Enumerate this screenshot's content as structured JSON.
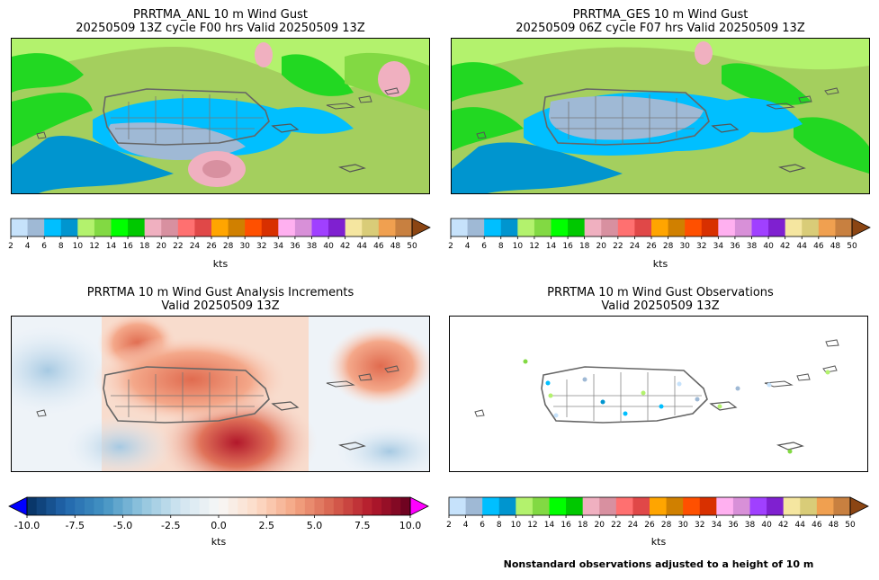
{
  "panels": {
    "anl": {
      "title1": "PRRTMA_ANL 10 m Wind Gust",
      "title2": "20250509 13Z cycle F00 hrs Valid 20250509 13Z"
    },
    "ges": {
      "title1": "PRRTMA_GES 10 m Wind Gust",
      "title2": "20250509 06Z cycle F07 hrs Valid 20250509 13Z"
    },
    "inc": {
      "title1": "PRRTMA 10 m Wind Gust Analysis Increments",
      "title2": "Valid 20250509 13Z"
    },
    "obs": {
      "title1": "PRRTMA 10 m Wind Gust Observations",
      "title2": "Valid 20250509 13Z"
    }
  },
  "gust_colorbar": {
    "units": "kts",
    "tick_labels": [
      "2",
      "4",
      "6",
      "8",
      "10",
      "12",
      "14",
      "16",
      "18",
      "20",
      "22",
      "24",
      "26",
      "28",
      "30",
      "32",
      "34",
      "36",
      "38",
      "40",
      "42",
      "44",
      "46",
      "48",
      "50"
    ],
    "colors": [
      "#c6e2fb",
      "#9fb9d5",
      "#00bfff",
      "#0095cf",
      "#b3f26d",
      "#82d943",
      "#00ff00",
      "#00c800",
      "#f0b0c0",
      "#d890a0",
      "#ff7070",
      "#e04848",
      "#ffa500",
      "#d08000",
      "#ff5000",
      "#d83000",
      "#ffb0f0",
      "#d890d8",
      "#a040ff",
      "#7f20d0",
      "#f5e6a0",
      "#d9cc78",
      "#f0a050",
      "#c88040"
    ],
    "extend_color": "#8b4513"
  },
  "increment_colorbar": {
    "units": "kts",
    "tick_labels": [
      "-10.0",
      "-7.5",
      "-5.0",
      "-2.5",
      "0.0",
      "2.5",
      "5.0",
      "7.5",
      "10.0"
    ],
    "min_color": "#0000ff",
    "max_color": "#ff00ff"
  },
  "note": "Nonstandard observations adjusted to a height of 10 m"
}
